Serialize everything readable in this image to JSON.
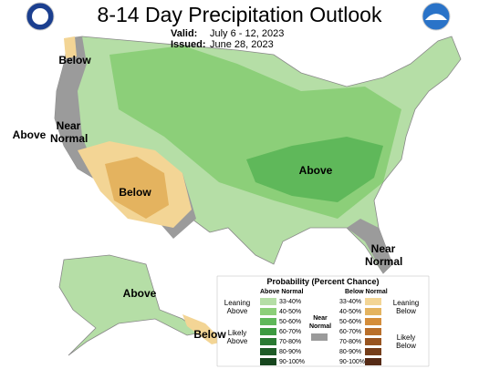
{
  "header": {
    "title": "8-14 Day Precipitation Outlook",
    "valid_label": "Valid:",
    "valid": "July 6 - 12, 2023",
    "issued_label": "Issued:",
    "issued": "June 28, 2023"
  },
  "map_labels": [
    "Below",
    "Above",
    "Near Normal",
    "Below",
    "Above",
    "Near Normal",
    "Above",
    "Below"
  ],
  "legend": {
    "title": "Probability (Percent Chance)",
    "above_header": "Above Normal",
    "below_header": "Below Normal",
    "leaning_above": "Leaning Above",
    "likely_above": "Likely Above",
    "near_normal": "Near Normal",
    "leaning_below": "Leaning Below",
    "likely_below": "Likely Below",
    "near_color": "#9b9b9b",
    "above": [
      {
        "range": "33-40%",
        "color": "#b5dea6"
      },
      {
        "range": "40-50%",
        "color": "#8ccf79"
      },
      {
        "range": "50-60%",
        "color": "#5fb85a"
      },
      {
        "range": "60-70%",
        "color": "#3c9a40"
      },
      {
        "range": "70-80%",
        "color": "#2a7a33"
      },
      {
        "range": "80-90%",
        "color": "#1f5c28"
      },
      {
        "range": "90-100%",
        "color": "#16451d"
      }
    ],
    "below": [
      {
        "range": "33-40%",
        "color": "#f3d595"
      },
      {
        "range": "40-50%",
        "color": "#e4b35f"
      },
      {
        "range": "50-60%",
        "color": "#d48d3a"
      },
      {
        "range": "60-70%",
        "color": "#b96f2a"
      },
      {
        "range": "70-80%",
        "color": "#985420"
      },
      {
        "range": "80-90%",
        "color": "#753e1a"
      },
      {
        "range": "90-100%",
        "color": "#552a15"
      }
    ]
  }
}
